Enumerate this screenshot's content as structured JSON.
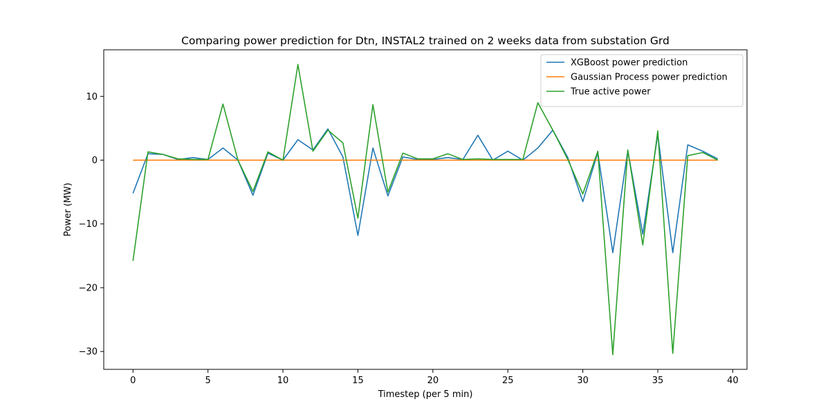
{
  "chart_data": {
    "type": "line",
    "title": "Comparing power prediction for Dtn, INSTAL2 trained on 2 weeks data from substation Grd",
    "xlabel": "Timestep (per 5 min)",
    "ylabel": "Power (MW)",
    "xlim": [
      -1.95,
      40.95
    ],
    "ylim": [
      -32.8,
      17.3
    ],
    "xticks": [
      0,
      5,
      10,
      15,
      20,
      25,
      30,
      35,
      40
    ],
    "yticks": [
      -30,
      -20,
      -10,
      0,
      10
    ],
    "ytick_labels": [
      "−30",
      "−20",
      "−10",
      "0",
      "10"
    ],
    "grid": false,
    "legend_position": "top-right",
    "x": [
      0,
      1,
      2,
      3,
      4,
      5,
      6,
      7,
      8,
      9,
      10,
      11,
      12,
      13,
      14,
      15,
      16,
      17,
      18,
      19,
      20,
      21,
      22,
      23,
      24,
      25,
      26,
      27,
      28,
      29,
      30,
      31,
      32,
      33,
      34,
      35,
      36,
      37,
      38,
      39
    ],
    "series": [
      {
        "name": "XGBoost power prediction",
        "color": "#1f77b4",
        "values": [
          -5.2,
          1.0,
          0.9,
          0.1,
          0.4,
          0.1,
          1.9,
          0.0,
          -5.5,
          1.1,
          0.0,
          3.2,
          1.6,
          4.9,
          0.5,
          -11.8,
          1.9,
          -5.6,
          0.5,
          0.1,
          0.1,
          0.4,
          0.1,
          3.9,
          0.0,
          1.4,
          0.0,
          1.9,
          4.7,
          0.4,
          -6.5,
          1.2,
          -14.5,
          1.5,
          -11.6,
          4.0,
          -14.5,
          2.4,
          1.4,
          0.2
        ]
      },
      {
        "name": "Gaussian Process power prediction",
        "color": "#ff7f0e",
        "values": [
          0,
          0,
          0,
          0,
          0,
          0,
          0,
          0,
          0,
          0,
          0,
          0,
          0,
          0,
          0,
          0,
          0,
          0,
          0,
          0,
          0,
          0,
          0,
          0,
          0,
          0,
          0,
          0,
          0,
          0,
          0,
          0,
          0,
          0,
          0,
          0,
          0,
          0,
          0,
          0
        ]
      },
      {
        "name": "True active power",
        "color": "#2ca02c",
        "values": [
          -15.8,
          1.3,
          0.9,
          0.2,
          0.1,
          0.1,
          8.8,
          0.0,
          -4.9,
          1.3,
          0.0,
          15.0,
          1.4,
          4.7,
          2.7,
          -9.1,
          8.7,
          -5.0,
          1.1,
          0.2,
          0.2,
          1.0,
          0.1,
          0.2,
          0.1,
          0.1,
          0.1,
          9.0,
          4.7,
          0.1,
          -5.3,
          1.4,
          -30.5,
          1.6,
          -13.3,
          4.6,
          -30.3,
          0.7,
          1.2,
          0.0
        ]
      }
    ]
  }
}
